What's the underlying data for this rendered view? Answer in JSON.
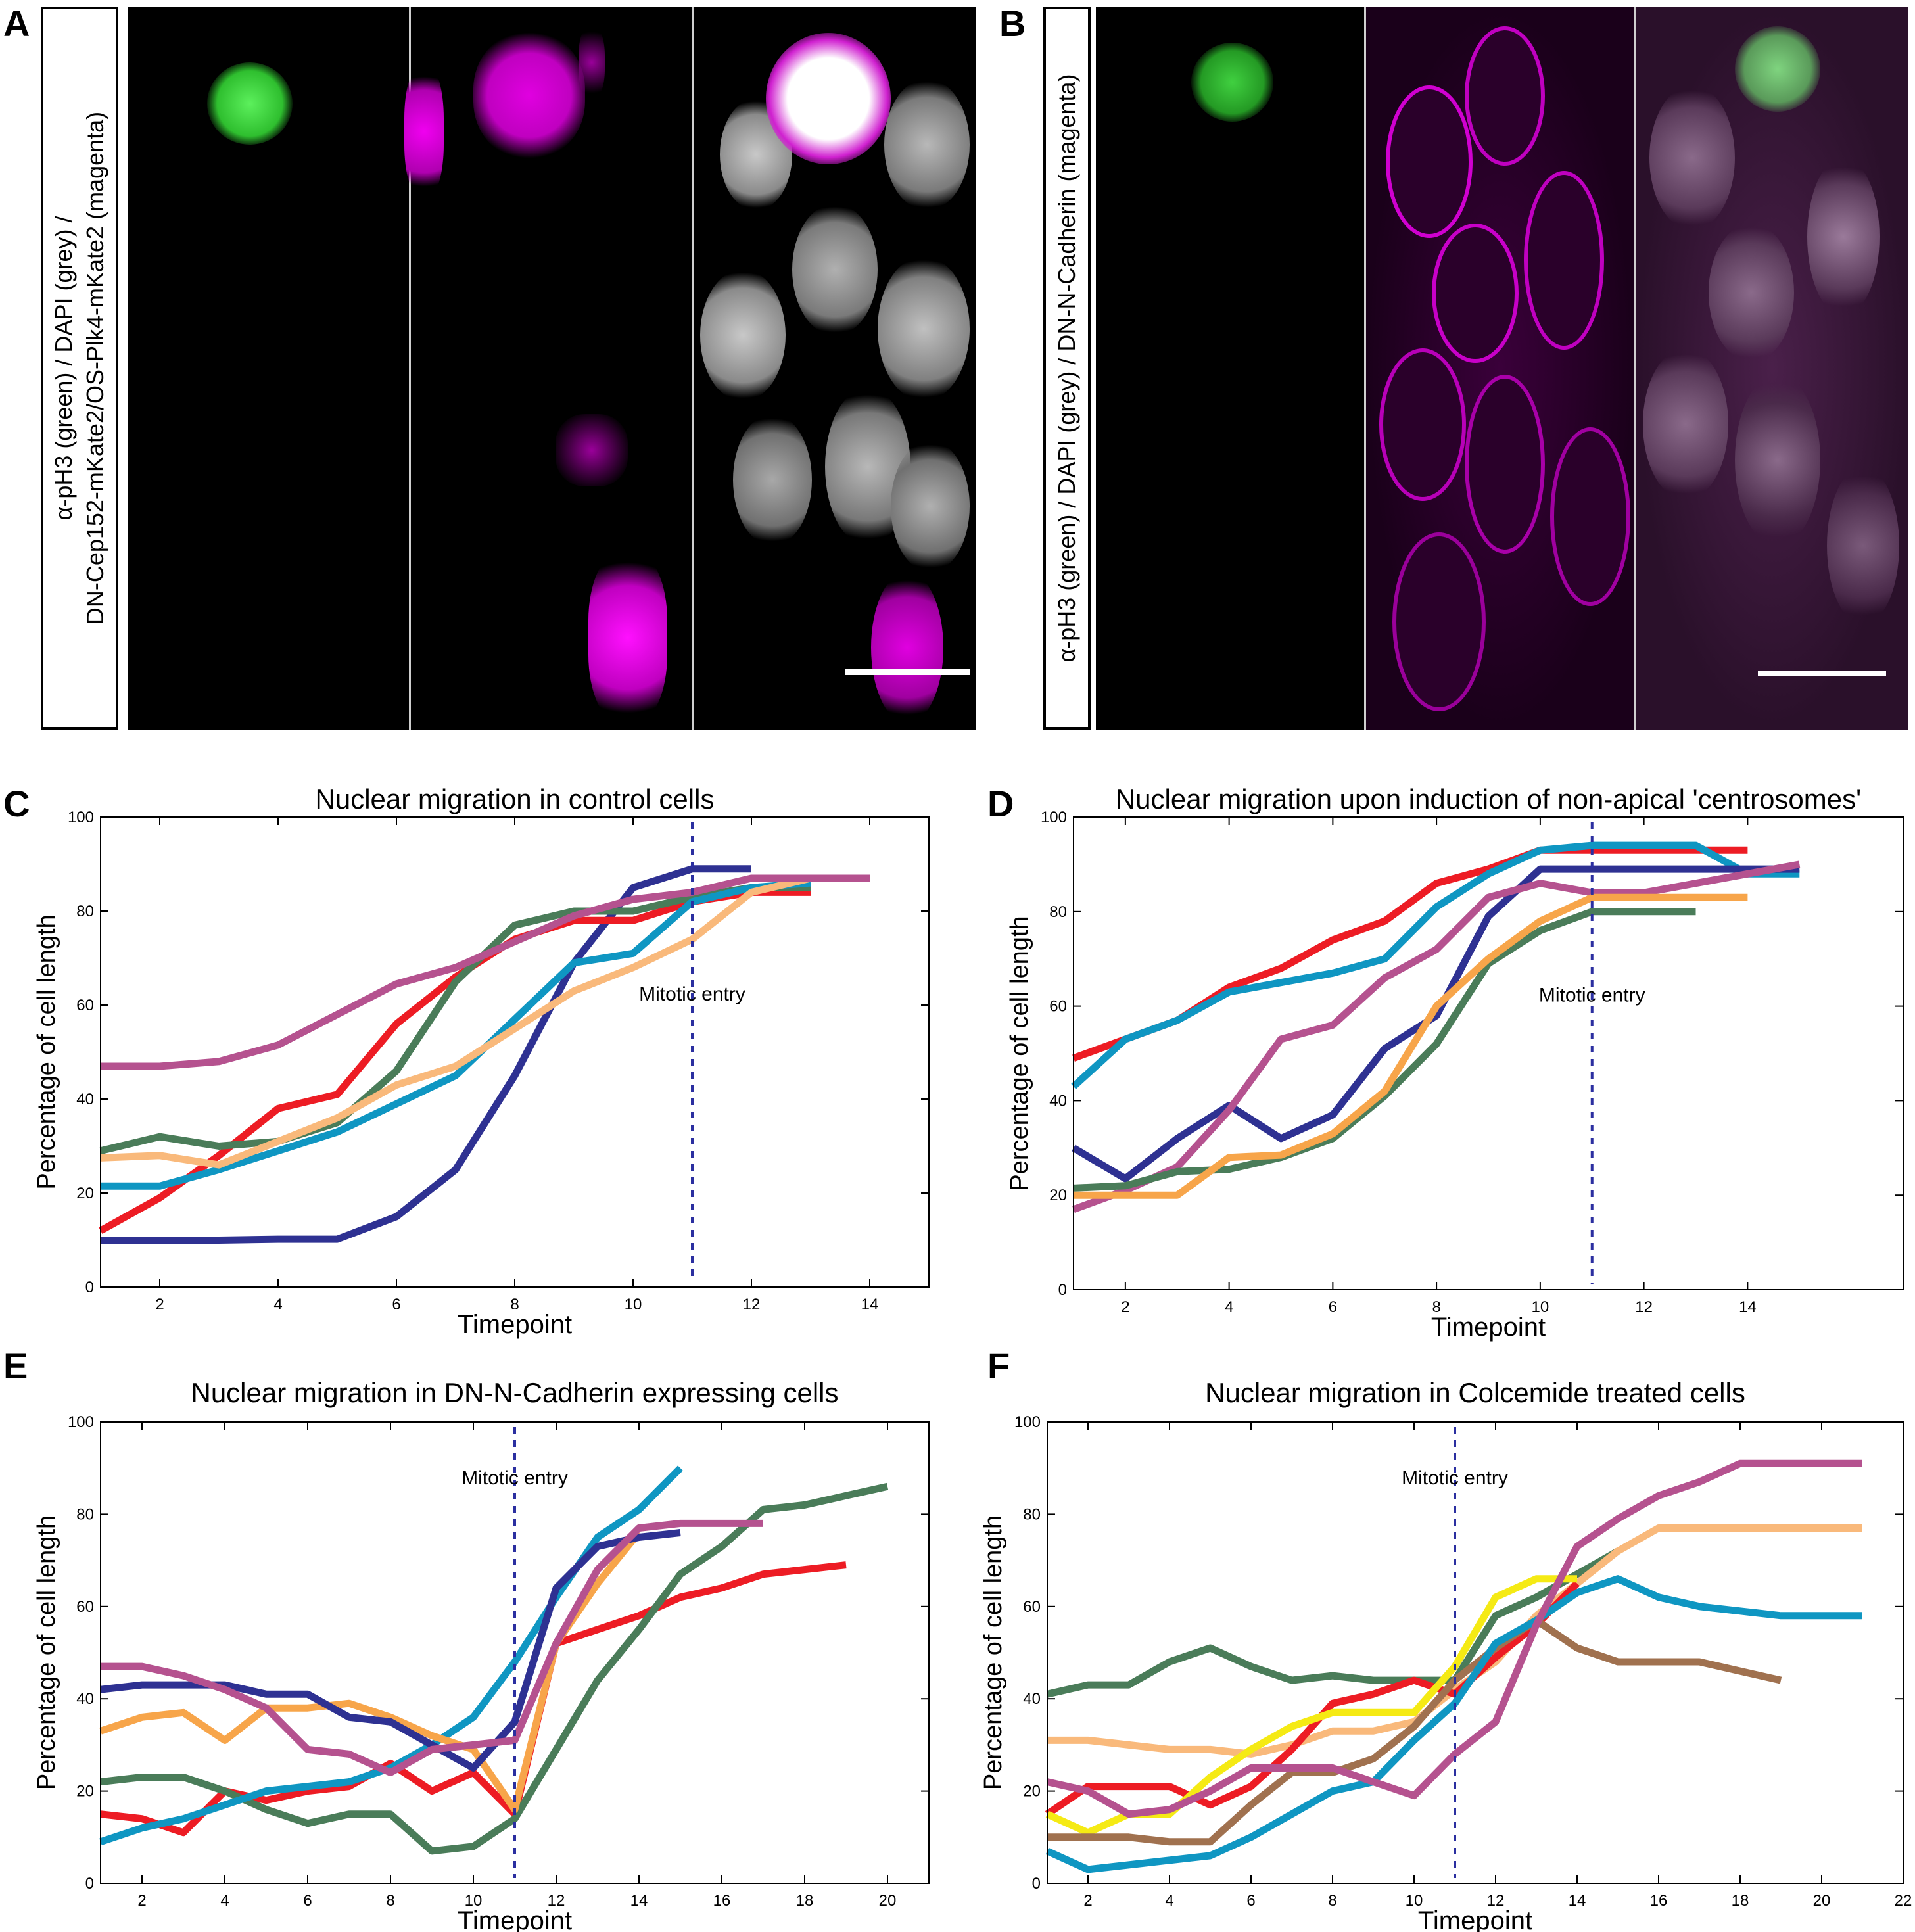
{
  "panel_letters": {
    "a": "A",
    "b": "B",
    "c": "C",
    "d": "D",
    "e": "E",
    "f": "F"
  },
  "micrograph_labels": {
    "a": [
      "α-pH3 (green) / DAPI (grey) /",
      "DN-Cep152-mKate2/OS-Plk4-mKate2 (magenta)"
    ],
    "b": [
      "α-pH3 (green) / DAPI (grey) / DN-N-Cadherin (magenta)"
    ]
  },
  "colors": {
    "navy": "#2e3192",
    "red": "#ed1c24",
    "green": "#4a7c59",
    "cyan": "#0f96c2",
    "peach": "#f9b97b",
    "orange": "#f7a54a",
    "pink": "#b5528f",
    "yellow": "#f5ea14",
    "brown": "#a0714f",
    "mitotic_line": "#2b2fa0",
    "micro_green": "#39d139",
    "micro_magenta": "#e000e0",
    "micro_grey": "#bdbdbd"
  },
  "chart_data": [
    {
      "id": "C",
      "type": "line",
      "title": "Nuclear migration in control cells",
      "xlabel": "Timepoint",
      "ylabel": "Percentage of cell length",
      "xlim": [
        1,
        15
      ],
      "ylim": [
        0,
        100
      ],
      "xticks": [
        2,
        4,
        6,
        8,
        10,
        12,
        14
      ],
      "yticks": [
        0,
        20,
        40,
        60,
        80,
        100
      ],
      "grid": false,
      "annotation": {
        "text": "Mitotic entry",
        "x": 11
      },
      "series": [
        {
          "color": "navy",
          "x": [
            1,
            2,
            3,
            4,
            5,
            6,
            7,
            8,
            9,
            10,
            11,
            12
          ],
          "y": [
            10,
            10,
            10,
            10.2,
            10.2,
            15,
            25,
            45,
            69,
            85,
            89,
            89
          ]
        },
        {
          "color": "red",
          "x": [
            1,
            2,
            3,
            4,
            5,
            6,
            7,
            8,
            9,
            10,
            11,
            12,
            13
          ],
          "y": [
            12,
            19,
            28,
            38,
            41,
            56,
            66,
            74,
            78,
            78,
            82,
            84,
            84
          ]
        },
        {
          "color": "green",
          "x": [
            1,
            2,
            3,
            4,
            5,
            6,
            7,
            8,
            9,
            10,
            11,
            12,
            13
          ],
          "y": [
            29,
            32,
            30,
            31,
            35,
            46,
            65,
            77,
            80,
            80,
            83,
            85,
            85
          ]
        },
        {
          "color": "cyan",
          "x": [
            1,
            2,
            3,
            4,
            5,
            6,
            7,
            8,
            9,
            10,
            11,
            12,
            13
          ],
          "y": [
            21.5,
            21.5,
            25,
            29,
            33,
            39,
            45,
            57,
            69,
            71,
            82,
            85,
            86
          ]
        },
        {
          "color": "peach",
          "x": [
            1,
            2,
            3,
            4,
            5,
            6,
            7,
            8,
            9,
            10,
            11,
            12,
            13
          ],
          "y": [
            27.5,
            28,
            26,
            31,
            36,
            43,
            47,
            55,
            63,
            68,
            74,
            84,
            87
          ]
        },
        {
          "color": "pink",
          "x": [
            1,
            2,
            3,
            4,
            5,
            6,
            7,
            8,
            9,
            10,
            11,
            12,
            13,
            14
          ],
          "y": [
            47,
            47,
            48,
            51.5,
            58,
            64.5,
            68,
            73.5,
            79,
            82.5,
            84,
            87,
            87,
            87
          ]
        }
      ]
    },
    {
      "id": "D",
      "type": "line",
      "title": "Nuclear migration upon induction of non-apical 'centrosomes'",
      "xlabel": "Timepoint",
      "ylabel": "Percentage of cell length",
      "xlim": [
        1,
        17
      ],
      "ylim": [
        0,
        100
      ],
      "xticks": [
        2,
        4,
        6,
        8,
        10,
        12,
        14
      ],
      "yticks": [
        0,
        20,
        40,
        60,
        80,
        100
      ],
      "grid": false,
      "annotation": {
        "text": "Mitotic entry",
        "x": 11
      },
      "series": [
        {
          "color": "red",
          "x": [
            1,
            2,
            3,
            4,
            5,
            6,
            7,
            8,
            9,
            10,
            11,
            12,
            13,
            14
          ],
          "y": [
            49,
            53,
            57,
            64,
            68,
            74,
            78,
            86,
            89,
            93,
            93,
            93,
            93,
            93
          ]
        },
        {
          "color": "cyan",
          "x": [
            1,
            2,
            3,
            4,
            5,
            6,
            7,
            8,
            9,
            10,
            11,
            12,
            13,
            14,
            15
          ],
          "y": [
            43,
            53,
            57,
            63,
            65,
            67,
            70,
            81,
            88,
            93,
            94,
            94,
            94,
            88,
            88
          ]
        },
        {
          "color": "navy",
          "x": [
            1,
            2,
            3,
            4,
            5,
            6,
            7,
            8,
            9,
            10,
            11,
            12,
            13,
            14,
            15
          ],
          "y": [
            30,
            23.5,
            32,
            39,
            32,
            37,
            51,
            58,
            79,
            89,
            89,
            89,
            89,
            89,
            89
          ]
        },
        {
          "color": "pink",
          "x": [
            1,
            2,
            3,
            4,
            5,
            6,
            7,
            8,
            9,
            10,
            11,
            12,
            13,
            14,
            15
          ],
          "y": [
            17,
            21,
            26,
            38,
            53,
            56,
            66,
            72,
            83,
            86,
            84,
            84,
            86,
            88,
            90
          ]
        },
        {
          "color": "green",
          "x": [
            1,
            2,
            3,
            4,
            5,
            6,
            7,
            8,
            9,
            10,
            11,
            12,
            13
          ],
          "y": [
            21.5,
            22,
            25,
            25.5,
            28,
            32,
            41,
            52,
            69,
            76,
            80,
            80,
            80
          ]
        },
        {
          "color": "orange",
          "x": [
            1,
            2,
            3,
            4,
            5,
            6,
            7,
            8,
            9,
            10,
            11,
            12,
            13,
            14
          ],
          "y": [
            20,
            20,
            20,
            28,
            28.5,
            33,
            42,
            60,
            70,
            78,
            83,
            83,
            83,
            83
          ]
        }
      ]
    },
    {
      "id": "E",
      "type": "line",
      "title": "Nuclear migration in DN-N-Cadherin expressing cells",
      "xlabel": "Timepoint",
      "ylabel": "Percentage of cell length",
      "xlim": [
        1,
        21
      ],
      "ylim": [
        0,
        100
      ],
      "xticks": [
        2,
        4,
        6,
        8,
        10,
        12,
        14,
        16,
        18,
        20
      ],
      "yticks": [
        0,
        20,
        40,
        60,
        80,
        100
      ],
      "grid": false,
      "annotation": {
        "text": "Mitotic entry",
        "x": 11
      },
      "series": [
        {
          "color": "red",
          "x": [
            1,
            2,
            3,
            4,
            5,
            6,
            7,
            8,
            9,
            10,
            11,
            12,
            13,
            14,
            15,
            16,
            17,
            18,
            19
          ],
          "y": [
            15,
            14,
            11,
            20,
            18,
            20,
            21,
            26,
            20,
            24,
            15,
            52,
            55,
            58,
            62,
            64,
            67,
            68,
            69
          ]
        },
        {
          "color": "green",
          "x": [
            1,
            2,
            3,
            4,
            5,
            6,
            7,
            8,
            9,
            10,
            11,
            12,
            13,
            14,
            15,
            16,
            17,
            18,
            19,
            20
          ],
          "y": [
            22,
            23,
            23,
            20,
            16,
            13,
            15,
            15,
            7,
            8,
            14,
            29,
            44,
            55,
            67,
            73,
            81,
            82,
            84,
            86
          ]
        },
        {
          "color": "cyan",
          "x": [
            1,
            2,
            3,
            4,
            5,
            6,
            7,
            8,
            9,
            10,
            11,
            12,
            13,
            14,
            15
          ],
          "y": [
            9,
            12,
            14,
            17,
            20,
            21,
            22,
            25,
            30,
            36,
            48,
            62,
            75,
            81,
            90
          ]
        },
        {
          "color": "orange",
          "x": [
            1,
            2,
            3,
            4,
            5,
            6,
            7,
            8,
            9,
            10,
            11,
            12,
            13,
            14
          ],
          "y": [
            33,
            36,
            37,
            31,
            38,
            38,
            39,
            36,
            32,
            29,
            16,
            52,
            65,
            76
          ]
        },
        {
          "color": "navy",
          "x": [
            1,
            2,
            3,
            4,
            5,
            6,
            7,
            8,
            9,
            10,
            11,
            12,
            13,
            14,
            15
          ],
          "y": [
            42,
            43,
            43,
            43,
            41,
            41,
            36,
            35,
            30,
            25,
            35,
            64,
            73,
            75,
            76
          ]
        },
        {
          "color": "pink",
          "x": [
            1,
            2,
            3,
            4,
            5,
            6,
            7,
            8,
            9,
            10,
            11,
            12,
            13,
            14,
            15,
            16,
            17
          ],
          "y": [
            47,
            47,
            45,
            42,
            38,
            29,
            28,
            24,
            29,
            30,
            31,
            52,
            68,
            77,
            78,
            78,
            78
          ]
        }
      ]
    },
    {
      "id": "F",
      "type": "line",
      "title": "Nuclear migration in Colcemide treated cells",
      "xlabel": "Timepoint",
      "ylabel": "Percentage of cell length",
      "xlim": [
        1,
        22
      ],
      "ylim": [
        0,
        100
      ],
      "xticks": [
        2,
        4,
        6,
        8,
        10,
        12,
        14,
        16,
        18,
        20,
        22
      ],
      "yticks": [
        0,
        20,
        40,
        60,
        80,
        100
      ],
      "grid": false,
      "annotation": {
        "text": "Mitotic entry",
        "x": 11
      },
      "series": [
        {
          "color": "green",
          "x": [
            1,
            2,
            3,
            4,
            5,
            6,
            7,
            8,
            9,
            10,
            11,
            12,
            13,
            14,
            15
          ],
          "y": [
            41,
            43,
            43,
            48,
            51,
            47,
            44,
            45,
            44,
            44,
            44,
            58,
            62,
            67,
            72
          ]
        },
        {
          "color": "peach",
          "x": [
            1,
            2,
            3,
            4,
            5,
            6,
            7,
            8,
            9,
            10,
            11,
            12,
            13,
            14,
            15,
            16,
            17,
            18,
            19,
            20,
            21
          ],
          "y": [
            31,
            31,
            30,
            29,
            29,
            28,
            30,
            33,
            33,
            35,
            42,
            48,
            58,
            65,
            72,
            77,
            77,
            77,
            77,
            77,
            77
          ]
        },
        {
          "color": "red",
          "x": [
            1,
            2,
            3,
            4,
            5,
            6,
            7,
            8,
            9,
            10,
            11,
            12,
            13,
            14
          ],
          "y": [
            15,
            21,
            21,
            21,
            17,
            21,
            29,
            39,
            41,
            44,
            41,
            49,
            56,
            65
          ]
        },
        {
          "color": "yellow",
          "x": [
            1,
            2,
            3,
            4,
            5,
            6,
            7,
            8,
            9,
            10,
            11,
            12,
            13,
            14
          ],
          "y": [
            15,
            11,
            15,
            15,
            23,
            29,
            34,
            37,
            37,
            37,
            47,
            62,
            66,
            66
          ]
        },
        {
          "color": "brown",
          "x": [
            1,
            2,
            3,
            4,
            5,
            6,
            7,
            8,
            9,
            10,
            11,
            12,
            13,
            14,
            15,
            16,
            17,
            18,
            19
          ],
          "y": [
            10,
            10,
            10,
            9,
            9,
            17,
            24,
            24,
            27,
            34,
            44,
            51,
            57,
            51,
            48,
            48,
            48,
            46,
            44
          ]
        },
        {
          "color": "cyan",
          "x": [
            1,
            2,
            3,
            4,
            5,
            6,
            7,
            8,
            9,
            10,
            11,
            12,
            13,
            14,
            15,
            16,
            17,
            18,
            19,
            20,
            21
          ],
          "y": [
            7,
            3,
            4,
            5,
            6,
            10,
            15,
            20,
            22,
            31,
            39,
            52,
            57,
            63,
            66,
            62,
            60,
            59,
            58,
            58,
            58
          ]
        },
        {
          "color": "pink",
          "x": [
            1,
            2,
            3,
            4,
            5,
            6,
            7,
            8,
            9,
            10,
            11,
            12,
            13,
            14,
            15,
            16,
            17,
            18,
            19,
            20,
            21
          ],
          "y": [
            22,
            20,
            15,
            16,
            20,
            25,
            25,
            25,
            22,
            19,
            28,
            35,
            56,
            73,
            79,
            84,
            87,
            91,
            91,
            91,
            91
          ]
        }
      ]
    }
  ]
}
